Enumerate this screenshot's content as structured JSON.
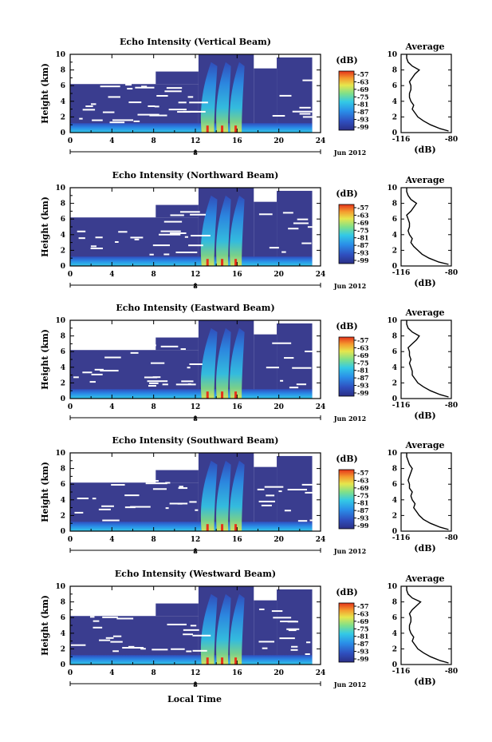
{
  "figure": {
    "xlabel": "Local Time",
    "date_label": "Jun 2012",
    "day_marker": "8"
  },
  "chart_data": [
    {
      "type": "heatmap",
      "title": "Echo Intensity (Vertical Beam)",
      "ylabel": "Height (km)",
      "ylim": [
        0,
        10
      ],
      "yticks": [
        0,
        2,
        4,
        6,
        8,
        10
      ],
      "xlim": [
        0,
        24
      ],
      "xticks": [
        0,
        4,
        8,
        12,
        16,
        20,
        24
      ],
      "colorbar": {
        "unit": "(dB)",
        "ticks": [
          "-57",
          "-63",
          "-69",
          "-75",
          "-81",
          "-87",
          "-93",
          "-99"
        ]
      },
      "profile": {
        "title": "Average",
        "ylabel": "Height (km)",
        "xlabel": "(dB)",
        "xticks": [
          "-116",
          "-80"
        ],
        "xlim": [
          -116,
          -80
        ],
        "ylim": [
          0,
          10
        ],
        "yticks": [
          0,
          2,
          4,
          6,
          8,
          10
        ],
        "height": [
          0.2,
          0.5,
          1,
          1.5,
          2,
          2.5,
          3,
          3.5,
          4,
          4.5,
          5,
          5.5,
          6,
          6.5,
          7,
          7.5,
          8,
          8.5,
          9,
          9.5,
          10
        ],
        "value": [
          -82,
          -88,
          -95,
          -100,
          -104,
          -106,
          -108,
          -107,
          -109,
          -110,
          -110,
          -109,
          -109,
          -110,
          -108,
          -106,
          -103,
          -108,
          -111,
          -112,
          -112
        ]
      }
    },
    {
      "type": "heatmap",
      "title": "Echo Intensity (Northward Beam)",
      "ylabel": "Height (km)",
      "ylim": [
        0,
        10
      ],
      "yticks": [
        0,
        2,
        4,
        6,
        8,
        10
      ],
      "xlim": [
        0,
        24
      ],
      "xticks": [
        0,
        4,
        8,
        12,
        16,
        20,
        24
      ],
      "colorbar": {
        "unit": "(dB)",
        "ticks": [
          "-57",
          "-63",
          "-69",
          "-75",
          "-81",
          "-87",
          "-93",
          "-99"
        ]
      },
      "profile": {
        "title": "Average",
        "ylabel": "Height (km)",
        "xlabel": "(dB)",
        "xticks": [
          "-116",
          "-80"
        ],
        "xlim": [
          -116,
          -80
        ],
        "ylim": [
          0,
          10
        ],
        "yticks": [
          0,
          2,
          4,
          6,
          8,
          10
        ],
        "height": [
          0.2,
          0.5,
          1,
          1.5,
          2,
          2.5,
          3,
          3.5,
          4,
          4.5,
          5,
          5.5,
          6,
          6.5,
          7,
          7.5,
          8,
          8.5,
          9,
          9.5,
          10
        ],
        "value": [
          -82,
          -89,
          -96,
          -101,
          -104,
          -107,
          -109,
          -108,
          -110,
          -111,
          -110,
          -110,
          -111,
          -112,
          -109,
          -107,
          -105,
          -109,
          -111,
          -112,
          -112
        ]
      }
    },
    {
      "type": "heatmap",
      "title": "Echo Intensity (Eastward Beam)",
      "ylabel": "Height (km)",
      "ylim": [
        0,
        10
      ],
      "yticks": [
        0,
        2,
        4,
        6,
        8,
        10
      ],
      "xlim": [
        0,
        24
      ],
      "xticks": [
        0,
        4,
        8,
        12,
        16,
        20,
        24
      ],
      "colorbar": {
        "unit": "(dB)",
        "ticks": [
          "-57",
          "-63",
          "-69",
          "-75",
          "-81",
          "-87",
          "-93",
          "-99"
        ]
      },
      "profile": {
        "title": "Average",
        "ylabel": "Height (km)",
        "xlabel": "(dB)",
        "xticks": [
          "-116",
          "-80"
        ],
        "xlim": [
          -116,
          -80
        ],
        "ylim": [
          0,
          10
        ],
        "yticks": [
          0,
          2,
          4,
          6,
          8,
          10
        ],
        "height": [
          0.2,
          0.5,
          1,
          1.5,
          2,
          2.5,
          3,
          3.5,
          4,
          4.5,
          5,
          5.5,
          6,
          6.5,
          7,
          7.5,
          8,
          8.5,
          9,
          9.5,
          10
        ],
        "value": [
          -82,
          -88,
          -95,
          -100,
          -104,
          -106,
          -108,
          -108,
          -109,
          -110,
          -109,
          -110,
          -110,
          -111,
          -108,
          -105,
          -103,
          -108,
          -111,
          -112,
          -112
        ]
      }
    },
    {
      "type": "heatmap",
      "title": "Echo Intensity (Southward Beam)",
      "ylabel": "Height (km)",
      "ylim": [
        0,
        10
      ],
      "yticks": [
        0,
        2,
        4,
        6,
        8,
        10
      ],
      "xlim": [
        0,
        24
      ],
      "xticks": [
        0,
        4,
        8,
        12,
        16,
        20,
        24
      ],
      "colorbar": {
        "unit": "(dB)",
        "ticks": [
          "-57",
          "-63",
          "-69",
          "-75",
          "-81",
          "-87",
          "-93",
          "-99"
        ]
      },
      "profile": {
        "title": "Average",
        "ylabel": "Height (km)",
        "xlabel": "(dB)",
        "xticks": [
          "-116",
          "-80"
        ],
        "xlim": [
          -116,
          -80
        ],
        "ylim": [
          0,
          10
        ],
        "yticks": [
          0,
          2,
          4,
          6,
          8,
          10
        ],
        "height": [
          0.2,
          0.5,
          1,
          1.5,
          2,
          2.5,
          3,
          3.5,
          4,
          4.5,
          5,
          5.5,
          6,
          6.5,
          7,
          7.5,
          8,
          8.5,
          9,
          9.5,
          10
        ],
        "value": [
          -82,
          -88,
          -95,
          -100,
          -103,
          -105,
          -107,
          -106,
          -108,
          -109,
          -108,
          -110,
          -110,
          -111,
          -110,
          -109,
          -108,
          -110,
          -111,
          -112,
          -112
        ]
      }
    },
    {
      "type": "heatmap",
      "title": "Echo Intensity (Westward Beam)",
      "ylabel": "Height (km)",
      "ylim": [
        0,
        10
      ],
      "yticks": [
        0,
        2,
        4,
        6,
        8,
        10
      ],
      "xlim": [
        0,
        24
      ],
      "xticks": [
        0,
        4,
        8,
        12,
        16,
        20,
        24
      ],
      "colorbar": {
        "unit": "(dB)",
        "ticks": [
          "-57",
          "-63",
          "-69",
          "-75",
          "-81",
          "-87",
          "-93",
          "-99"
        ]
      },
      "profile": {
        "title": "Average",
        "ylabel": "Height (km)",
        "xlabel": "(dB)",
        "xticks": [
          "-116",
          "-80"
        ],
        "xlim": [
          -116,
          -80
        ],
        "ylim": [
          0,
          10
        ],
        "yticks": [
          0,
          2,
          4,
          6,
          8,
          10
        ],
        "height": [
          0.2,
          0.5,
          1,
          1.5,
          2,
          2.5,
          3,
          3.5,
          4,
          4.5,
          5,
          5.5,
          6,
          6.5,
          7,
          7.5,
          8,
          8.5,
          9,
          9.5,
          10
        ],
        "value": [
          -82,
          -88,
          -95,
          -100,
          -104,
          -106,
          -108,
          -107,
          -109,
          -110,
          -110,
          -109,
          -109,
          -110,
          -108,
          -105,
          -102,
          -108,
          -111,
          -112,
          -112
        ]
      }
    }
  ],
  "colors": {
    "background_echo": "#3a3d8f",
    "colormap": [
      "#2b2f86",
      "#2f4fbf",
      "#2a8ee8",
      "#33c9e6",
      "#7fe08a",
      "#e6e64d",
      "#f59a2e",
      "#e4331b"
    ]
  }
}
